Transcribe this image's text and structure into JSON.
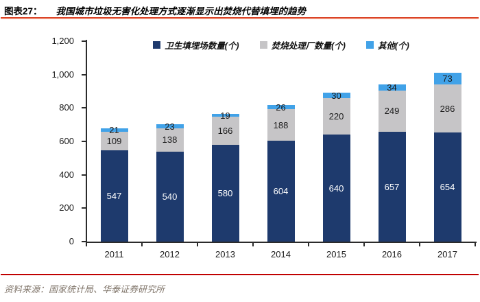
{
  "header": {
    "figure_label": "图表27：",
    "title": "我国城市垃圾无害化处理方式逐渐显示出焚烧代替填埋的趋势"
  },
  "footer": {
    "source": "资料来源：国家统计局、华泰证券研究所"
  },
  "colors": {
    "landfill_bar": "#1e3a6d",
    "incineration_bar": "#c6c5c7",
    "other_bar": "#41a2e8",
    "axis": "#2b2b2b",
    "title_rule_top": "#da4226",
    "title_rule_bottom": "#f5a58f",
    "footer_rule": "#c00000",
    "source_text": "#80756a"
  },
  "chart_data": {
    "type": "bar",
    "stacked": true,
    "title": "我国城市垃圾无害化处理方式逐渐显示出焚烧代替填埋的趋势",
    "xlabel": "",
    "ylabel": "",
    "categories": [
      "2011",
      "2012",
      "2013",
      "2014",
      "2015",
      "2016",
      "2017"
    ],
    "series": [
      {
        "name": "卫生填埋场数量(个)",
        "color": "#1e3a6d",
        "label_color": "#ffffff",
        "values": [
          547,
          540,
          580,
          604,
          640,
          657,
          654
        ]
      },
      {
        "name": "焚烧处理厂数量(个)",
        "color": "#c6c5c7",
        "label_color": "#1a1a1a",
        "values": [
          109,
          138,
          166,
          188,
          220,
          249,
          286
        ]
      },
      {
        "name": "其他(个)",
        "color": "#41a2e8",
        "label_color": "#1a1a1a",
        "values": [
          21,
          23,
          19,
          26,
          30,
          34,
          73
        ]
      }
    ],
    "ylim": [
      0,
      1200
    ],
    "yticks": [
      "0",
      "200",
      "400",
      "600",
      "800",
      "1,000",
      "1,200"
    ],
    "grid": false,
    "legend_position": "top"
  }
}
